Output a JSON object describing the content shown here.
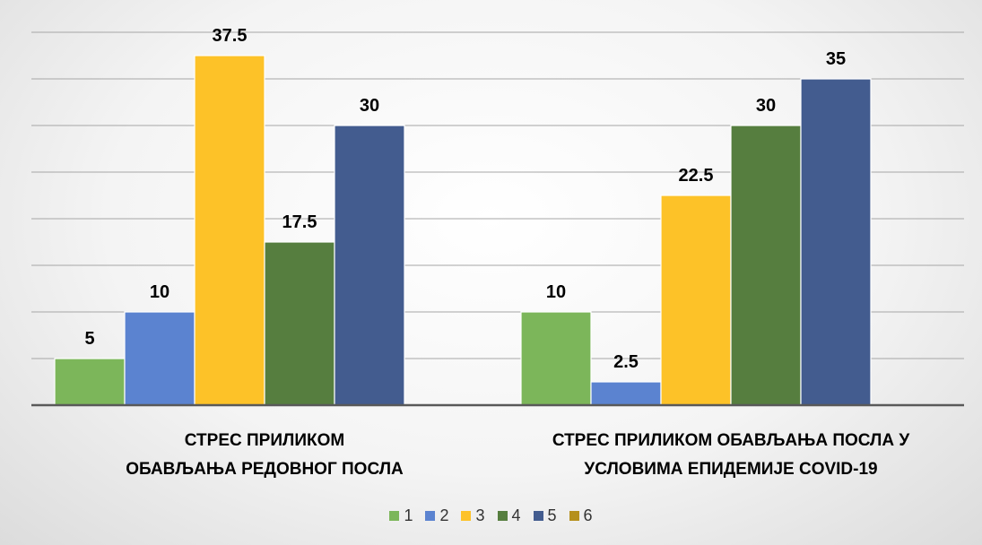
{
  "chart_data": {
    "type": "bar",
    "categories": [
      "СТРЕС ПРИЛИКОМ\nОБАВЉАЊА РЕДОВНОГ ПОСЛА",
      "СТРЕС ПРИЛИКОМ ОБАВЉАЊА ПОСЛА У\nУСЛОВИМА ЕПИДЕМИЈЕ COVID-19"
    ],
    "series": [
      {
        "name": "1",
        "color": "#7cb65a",
        "values": [
          5,
          10
        ]
      },
      {
        "name": "2",
        "color": "#5b83d0",
        "values": [
          10,
          2.5
        ]
      },
      {
        "name": "3",
        "color": "#fdc228",
        "values": [
          37.5,
          22.5
        ]
      },
      {
        "name": "4",
        "color": "#567e3f",
        "values": [
          17.5,
          30
        ]
      },
      {
        "name": "5",
        "color": "#435c8f",
        "values": [
          30,
          35
        ]
      },
      {
        "name": "6",
        "color": "#b5901c",
        "values": [
          null,
          null
        ]
      }
    ],
    "ylim": [
      0,
      40
    ],
    "yticks": [
      0,
      5,
      10,
      15,
      20,
      25,
      30,
      35,
      40
    ],
    "grid": true,
    "legend": "bottom"
  }
}
